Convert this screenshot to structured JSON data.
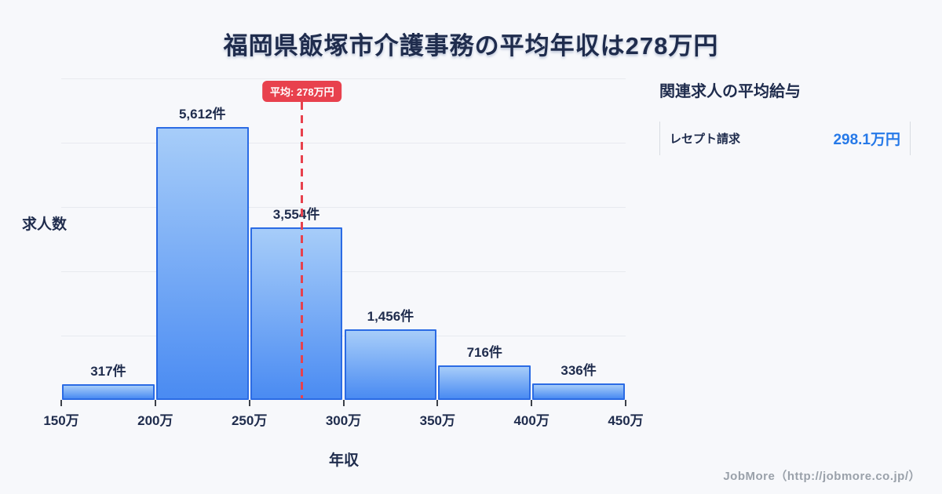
{
  "title": "福岡県飯塚市介護事務の平均年収は278万円",
  "chart_data": {
    "type": "bar",
    "title": "福岡県飯塚市介護事務の平均年収は278万円",
    "categories": [
      "150万-200万",
      "200万-250万",
      "250万-300万",
      "300万-350万",
      "350万-400万",
      "400万-450万"
    ],
    "values": [
      317,
      5612,
      3554,
      1456,
      716,
      336
    ],
    "bar_labels": [
      "317件",
      "5,612件",
      "3,554件",
      "1,456件",
      "716件",
      "336件"
    ],
    "x_tick_labels": [
      "150万",
      "200万",
      "250万",
      "300万",
      "350万",
      "400万",
      "450万"
    ],
    "xlabel": "年収",
    "ylabel": "求人数",
    "xlim": [
      150,
      450
    ],
    "ylim": [
      0,
      6612
    ],
    "grid": "horizontal",
    "legend": "none",
    "average_line": {
      "value": 278,
      "label": "平均: 278万円"
    }
  },
  "side_panel": {
    "heading": "関連求人の平均給与",
    "rows": [
      {
        "label": "レセプト請求",
        "value": "298.1万円"
      }
    ]
  },
  "footer": {
    "credit": "JobMore（http://jobmore.co.jp/）"
  },
  "colors": {
    "background": "#f7f8fb",
    "heading_text": "#1f2c4d",
    "bar_fill_top": "#a7cdf9",
    "bar_fill_bottom": "#4a8bf2",
    "bar_border": "#2b6be4",
    "average_red": "#e8414d",
    "value_blue": "#2679e8",
    "gridline": "#e8eaef",
    "footer_gray": "#9aa1aa"
  }
}
